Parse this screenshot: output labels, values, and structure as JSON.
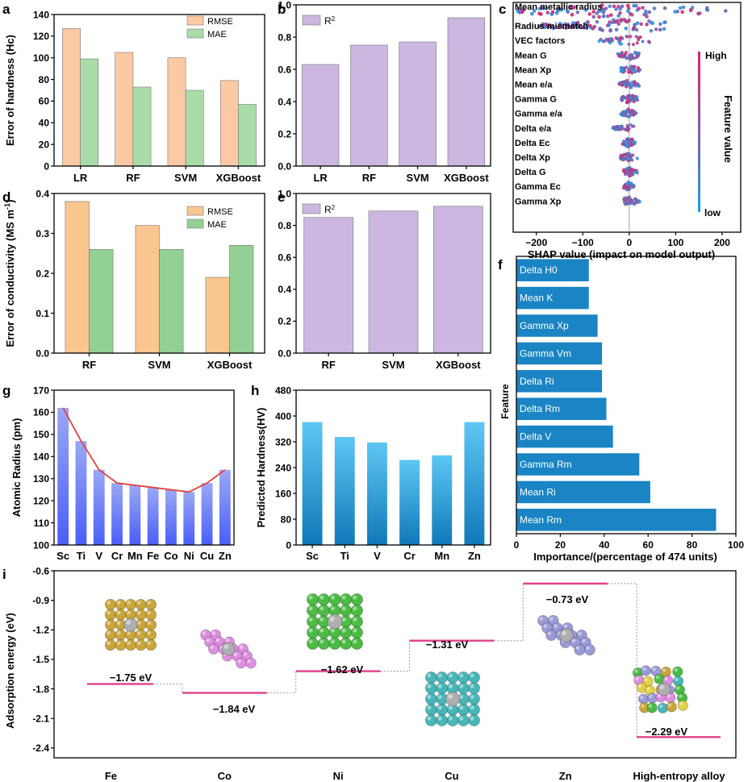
{
  "colors": {
    "rmse_ab": "#fbc9a4",
    "mae_ab": "#aadcaa",
    "rmse_d": "#f9c690",
    "mae_d": "#93d093",
    "r2": "#cbb7e0",
    "bar_g": "#4a5ef8",
    "line_g": "#e84040",
    "bar_h": "#2e9fd8",
    "bar_f": "#1a84c4",
    "level": "#e0408a",
    "connector": "#999999",
    "shap_high": "#e0206e",
    "shap_low": "#1e9be8"
  },
  "panels": {
    "a": {
      "letter": "a",
      "chart_data": {
        "type": "bar",
        "ylabel": "Error of hardness (Hc)",
        "ylim": [
          0,
          140
        ],
        "yticks": [
          0,
          20,
          40,
          60,
          80,
          100,
          120,
          140
        ],
        "categories": [
          "LR",
          "RF",
          "SVM",
          "XGBoost"
        ],
        "legend_position": "top-right",
        "series": [
          {
            "name": "RMSE",
            "values": [
              127,
              105,
              100,
              79
            ]
          },
          {
            "name": "MAE",
            "values": [
              99,
              73,
              70,
              57
            ]
          }
        ]
      }
    },
    "b": {
      "letter": "b",
      "chart_data": {
        "type": "bar",
        "ylim": [
          0,
          1.0
        ],
        "yticks": [
          "0.0",
          "0.2",
          "0.4",
          "0.6",
          "0.8",
          "1.0"
        ],
        "categories": [
          "LR",
          "RF",
          "SVM",
          "XGBoost"
        ],
        "legend_position": "top-left",
        "series": [
          {
            "name": "R",
            "sup": "2",
            "values": [
              0.63,
              0.75,
              0.77,
              0.92
            ]
          }
        ]
      }
    },
    "c": {
      "letter": "c",
      "chart_data": {
        "type": "scatter",
        "xlabel": "SHAP value (impact on model output)",
        "xlim": [
          -250,
          240
        ],
        "xticks": [
          -200,
          -100,
          0,
          100,
          200
        ],
        "features": [
          "Mean metallic radius",
          "Radius mismatch",
          "VEC factors",
          "Mean G",
          "Mean Xp",
          "Mean e/a",
          "Gamma G",
          "Gamma e/a",
          "Delta e/a",
          "Delta Ec",
          "Delta Xp",
          "Delta G",
          "Gamma Ec",
          "Gamma Xp"
        ],
        "spread": [
          [
            -240,
            235
          ],
          [
            -195,
            85
          ],
          [
            -65,
            45
          ],
          [
            -25,
            22
          ],
          [
            -18,
            25
          ],
          [
            -22,
            22
          ],
          [
            -20,
            18
          ],
          [
            -18,
            15
          ],
          [
            -35,
            10
          ],
          [
            -15,
            15
          ],
          [
            -22,
            18
          ],
          [
            -12,
            18
          ],
          [
            -12,
            12
          ],
          [
            -12,
            28
          ]
        ],
        "colorbar": {
          "label": "Feature value",
          "high": "High",
          "low": "low"
        }
      }
    },
    "d": {
      "letter": "d",
      "chart_data": {
        "type": "bar",
        "ylabel": "Error of conductivity (MS m",
        "ylabel_sup": "-1",
        "ylabel_end": ")",
        "ylim": [
          0,
          0.4
        ],
        "yticks": [
          "0.0",
          "0.1",
          "0.2",
          "0.3",
          "0.4"
        ],
        "categories": [
          "RF",
          "SVM",
          "XGBoost"
        ],
        "legend_position": "top-right",
        "series": [
          {
            "name": "RMSE",
            "values": [
              0.38,
              0.32,
              0.19
            ]
          },
          {
            "name": "MAE",
            "values": [
              0.26,
              0.26,
              0.27
            ]
          }
        ]
      }
    },
    "e": {
      "letter": "e",
      "chart_data": {
        "type": "bar",
        "ylim": [
          0,
          1.0
        ],
        "yticks": [
          "0.0",
          "0.2",
          "0.4",
          "0.6",
          "0.8",
          "1.0"
        ],
        "categories": [
          "RF",
          "SVM",
          "XGBoost"
        ],
        "legend_position": "top-left",
        "series": [
          {
            "name": "R",
            "sup": "2",
            "values": [
              0.85,
              0.89,
              0.92
            ]
          }
        ]
      }
    },
    "f": {
      "letter": "f",
      "chart_data": {
        "type": "bar",
        "orientation": "horizontal",
        "xlabel": "Importance/(percentage of 474 units)",
        "ylabel": "Feature",
        "xlim": [
          0,
          100
        ],
        "xticks": [
          0,
          20,
          40,
          60,
          80,
          100
        ],
        "categories": [
          "Delta H0",
          "Mean K",
          "Gamma Xp",
          "Gamma Vm",
          "Delta Ri",
          "Delta Rm",
          "Delta V",
          "Gamma Rm",
          "Mean Ri",
          "Mean Rm"
        ],
        "values": [
          33,
          33,
          37,
          39,
          39,
          41,
          44,
          56,
          61,
          91
        ]
      }
    },
    "g": {
      "letter": "g",
      "chart_data": {
        "type": "bar",
        "ylabel": "Atomic Radius (pm)",
        "ylim": [
          100,
          170
        ],
        "yticks": [
          100,
          110,
          120,
          130,
          140,
          150,
          160,
          170
        ],
        "categories": [
          "Sc",
          "Ti",
          "V",
          "Cr",
          "Mn",
          "Fe",
          "Co",
          "Ni",
          "Cu",
          "Zn"
        ],
        "values": [
          162,
          147,
          134,
          128,
          127,
          126,
          125,
          124,
          128,
          134
        ]
      }
    },
    "h": {
      "letter": "h",
      "chart_data": {
        "type": "bar",
        "ylabel": "Predicted Hardness(HV)",
        "ylim": [
          0,
          480
        ],
        "yticks": [
          0,
          80,
          160,
          240,
          320,
          400,
          480
        ],
        "categories": [
          "Sc",
          "Ti",
          "V",
          "Cr",
          "Mn",
          "Zn"
        ],
        "values": [
          381,
          335,
          318,
          264,
          278,
          381
        ]
      }
    },
    "i": {
      "letter": "i",
      "chart_data": {
        "type": "line",
        "ylabel": "Adsorption energy (eV)",
        "ylim": [
          -2.5,
          -0.6
        ],
        "yticks": [
          "-0.6",
          "-0.9",
          "-1.2",
          "-1.5",
          "-1.8",
          "-2.1",
          "-2.4"
        ],
        "categories": [
          "Fe",
          "Co",
          "Ni",
          "Cu",
          "Zn",
          "High-entropy alloy"
        ],
        "values": [
          -1.75,
          -1.84,
          -1.62,
          -1.31,
          -0.73,
          -2.29
        ],
        "labels": [
          "−1.75 eV",
          "−1.84 eV",
          "−1.62 eV",
          "−1.31 eV",
          "−0.73 eV",
          "−2.29 eV"
        ]
      }
    }
  }
}
